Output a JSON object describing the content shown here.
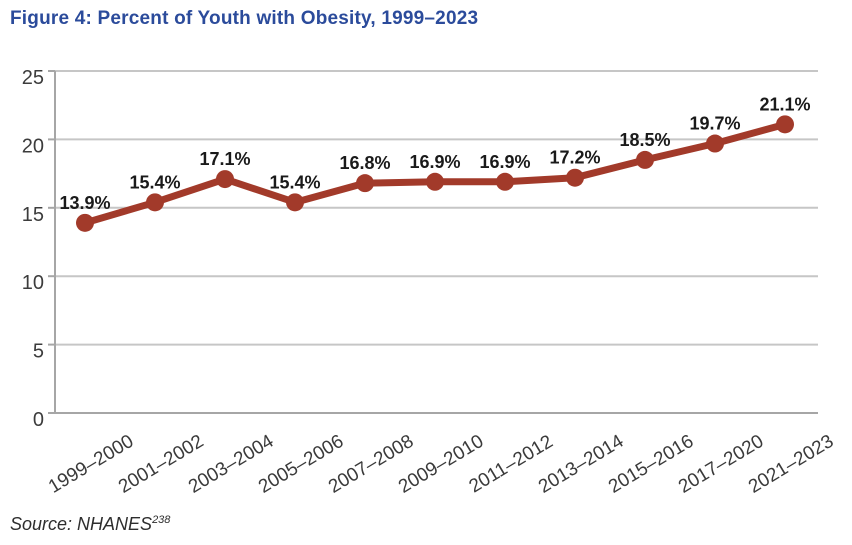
{
  "page": {
    "title": "Figure 4: Percent of Youth with Obesity, 1999–2023",
    "source_prefix": "Source: NHANES",
    "source_superscript": "238"
  },
  "colors": {
    "title_text": "#2B4B9B",
    "line": "#A23A2A",
    "marker": "#A23A2A",
    "grid": "#C6C6C6",
    "axis": "#A6A6A6",
    "y_tick_text": "#3C3C3C",
    "x_tick_text": "#3A3A3A",
    "data_label_text": "#1A1A1A",
    "source_text": "#2E2E2E",
    "background": "#FFFFFF"
  },
  "chart_data": {
    "type": "line",
    "title": "Figure 4: Percent of Youth with Obesity, 1999–2023",
    "categories": [
      "1999–2000",
      "2001–2002",
      "2003–2004",
      "2005–2006",
      "2007–2008",
      "2009–2010",
      "2011–2012",
      "2013–2014",
      "2015–2016",
      "2017–2020",
      "2021–2023"
    ],
    "values": [
      13.9,
      15.4,
      17.1,
      15.4,
      16.8,
      16.9,
      16.9,
      17.2,
      18.5,
      19.7,
      21.1
    ],
    "data_labels": [
      "13.9%",
      "15.4%",
      "17.1%",
      "15.4%",
      "16.8%",
      "16.9%",
      "16.9%",
      "17.2%",
      "18.5%",
      "19.7%",
      "21.1%"
    ],
    "xlabel": "",
    "ylabel": "",
    "y_ticks": [
      0,
      5,
      10,
      15,
      20,
      25
    ],
    "ylim": [
      0,
      25
    ],
    "grid": "horizontal",
    "legend": "none",
    "x_tick_rotation_deg": -31,
    "source": "Source: NHANES 238"
  }
}
